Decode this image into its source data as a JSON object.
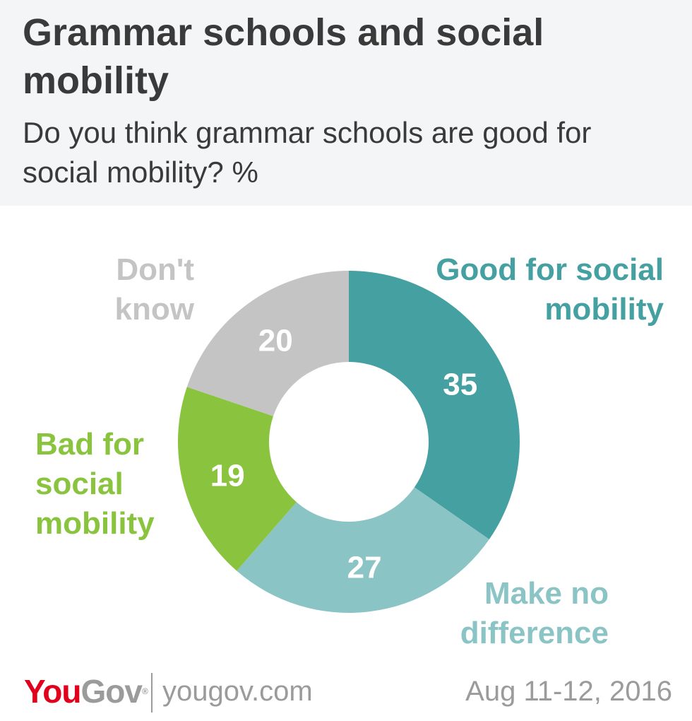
{
  "header": {
    "title": "Grammar schools and social mobility",
    "subtitle": "Do you think grammar schools are good for social mobility? %"
  },
  "chart_data": {
    "type": "pie",
    "donut": true,
    "unit": "%",
    "slices": [
      {
        "label": "Good for social mobility",
        "value": 35,
        "color": "#45a0a1",
        "label_color": "#45a0a1"
      },
      {
        "label": "Make no difference",
        "value": 27,
        "color": "#8bc4c5",
        "label_color": "#8bc4c5"
      },
      {
        "label": "Bad for social mobility",
        "value": 19,
        "color": "#8ac43f",
        "label_color": "#8ac43f"
      },
      {
        "label": "Don't know",
        "value": 20,
        "color": "#c4c4c4",
        "label_color": "#c4c4c4"
      }
    ],
    "value_label_color": "#ffffff"
  },
  "footer": {
    "logo_you": "You",
    "logo_gov": "Gov",
    "logo_mark": "®",
    "url": "yougov.com",
    "date": "Aug 11-12, 2016"
  }
}
